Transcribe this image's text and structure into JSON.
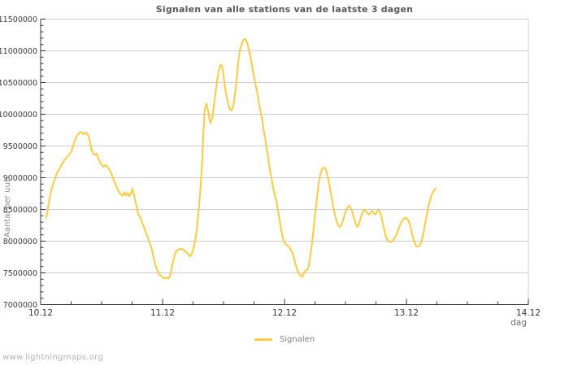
{
  "watermark": "www.lightningmaps.org",
  "legend": {
    "label": "Signalen",
    "color": "#FBCB43",
    "position": "bottom center"
  },
  "colors": {
    "background": "#ffffff",
    "line": "#FBCB43",
    "grid": "#cccccc",
    "axis": "#333333",
    "tick_label": "#3a3a3a",
    "title_text": "#595959",
    "muted_text": "#8a8a8a"
  },
  "chart_data": {
    "type": "line",
    "title": "Signalen van alle stations van de laatste 3 dagen",
    "xlabel": "dag",
    "ylabel": "Aantal per uur",
    "grid": "horizontal major gridlines only, boxed top and right border",
    "legend_position": "bottom center",
    "x_tick_labels": [
      "10.12",
      "11.12",
      "12.12",
      "13.12",
      "14.12"
    ],
    "x_tick_positions_days": [
      0,
      1,
      2,
      3,
      4
    ],
    "x_minor_tick_interval_days": 0.25,
    "xlim_days": [
      0,
      4
    ],
    "y_tick_labels": [
      "7000000",
      "7500000",
      "8000000",
      "8500000",
      "9000000",
      "9500000",
      "10000000",
      "10500000",
      "11000000",
      "11500000"
    ],
    "y_tick_values": [
      7000000,
      7500000,
      8000000,
      8500000,
      9000000,
      9500000,
      10000000,
      10500000,
      11000000,
      11500000
    ],
    "y_minor_tick_interval": 100000,
    "ylim": [
      7000000,
      11500000
    ],
    "series": [
      {
        "name": "Signalen",
        "color": "#FBCB43",
        "x_unit": "days since 10.12",
        "y_unit": "signals per hour",
        "points": [
          [
            0.047,
            8370000
          ],
          [
            0.067,
            8600000
          ],
          [
            0.087,
            8800000
          ],
          [
            0.107,
            8930000
          ],
          [
            0.133,
            9070000
          ],
          [
            0.16,
            9160000
          ],
          [
            0.187,
            9260000
          ],
          [
            0.213,
            9320000
          ],
          [
            0.233,
            9360000
          ],
          [
            0.253,
            9420000
          ],
          [
            0.273,
            9550000
          ],
          [
            0.293,
            9640000
          ],
          [
            0.313,
            9700000
          ],
          [
            0.333,
            9720000
          ],
          [
            0.353,
            9690000
          ],
          [
            0.373,
            9710000
          ],
          [
            0.393,
            9660000
          ],
          [
            0.407,
            9550000
          ],
          [
            0.42,
            9420000
          ],
          [
            0.44,
            9360000
          ],
          [
            0.46,
            9380000
          ],
          [
            0.473,
            9300000
          ],
          [
            0.493,
            9220000
          ],
          [
            0.513,
            9170000
          ],
          [
            0.533,
            9200000
          ],
          [
            0.553,
            9160000
          ],
          [
            0.573,
            9100000
          ],
          [
            0.593,
            9000000
          ],
          [
            0.613,
            8900000
          ],
          [
            0.633,
            8810000
          ],
          [
            0.653,
            8750000
          ],
          [
            0.673,
            8710000
          ],
          [
            0.687,
            8770000
          ],
          [
            0.7,
            8720000
          ],
          [
            0.713,
            8760000
          ],
          [
            0.727,
            8710000
          ],
          [
            0.74,
            8750000
          ],
          [
            0.753,
            8830000
          ],
          [
            0.767,
            8720000
          ],
          [
            0.78,
            8600000
          ],
          [
            0.8,
            8430000
          ],
          [
            0.82,
            8360000
          ],
          [
            0.84,
            8260000
          ],
          [
            0.86,
            8150000
          ],
          [
            0.88,
            8050000
          ],
          [
            0.893,
            7990000
          ],
          [
            0.913,
            7860000
          ],
          [
            0.933,
            7680000
          ],
          [
            0.953,
            7560000
          ],
          [
            0.973,
            7480000
          ],
          [
            0.993,
            7440000
          ],
          [
            1.013,
            7410000
          ],
          [
            1.033,
            7430000
          ],
          [
            1.047,
            7410000
          ],
          [
            1.06,
            7450000
          ],
          [
            1.073,
            7550000
          ],
          [
            1.087,
            7680000
          ],
          [
            1.1,
            7780000
          ],
          [
            1.113,
            7850000
          ],
          [
            1.133,
            7870000
          ],
          [
            1.153,
            7880000
          ],
          [
            1.173,
            7860000
          ],
          [
            1.193,
            7830000
          ],
          [
            1.213,
            7790000
          ],
          [
            1.227,
            7760000
          ],
          [
            1.24,
            7800000
          ],
          [
            1.253,
            7880000
          ],
          [
            1.267,
            8000000
          ],
          [
            1.28,
            8180000
          ],
          [
            1.293,
            8420000
          ],
          [
            1.307,
            8720000
          ],
          [
            1.32,
            9100000
          ],
          [
            1.333,
            9600000
          ],
          [
            1.34,
            9900000
          ],
          [
            1.347,
            10080000
          ],
          [
            1.36,
            10170000
          ],
          [
            1.373,
            10060000
          ],
          [
            1.387,
            9900000
          ],
          [
            1.393,
            9860000
          ],
          [
            1.407,
            9950000
          ],
          [
            1.42,
            10120000
          ],
          [
            1.433,
            10320000
          ],
          [
            1.447,
            10520000
          ],
          [
            1.46,
            10680000
          ],
          [
            1.473,
            10780000
          ],
          [
            1.487,
            10770000
          ],
          [
            1.5,
            10620000
          ],
          [
            1.513,
            10420000
          ],
          [
            1.527,
            10260000
          ],
          [
            1.54,
            10150000
          ],
          [
            1.553,
            10080000
          ],
          [
            1.567,
            10060000
          ],
          [
            1.58,
            10120000
          ],
          [
            1.593,
            10300000
          ],
          [
            1.607,
            10550000
          ],
          [
            1.62,
            10800000
          ],
          [
            1.633,
            11000000
          ],
          [
            1.647,
            11100000
          ],
          [
            1.66,
            11160000
          ],
          [
            1.673,
            11190000
          ],
          [
            1.687,
            11160000
          ],
          [
            1.7,
            11080000
          ],
          [
            1.713,
            10970000
          ],
          [
            1.727,
            10840000
          ],
          [
            1.74,
            10700000
          ],
          [
            1.753,
            10560000
          ],
          [
            1.767,
            10430000
          ],
          [
            1.78,
            10300000
          ],
          [
            1.793,
            10150000
          ],
          [
            1.807,
            10010000
          ],
          [
            1.82,
            9870000
          ],
          [
            1.833,
            9710000
          ],
          [
            1.847,
            9550000
          ],
          [
            1.86,
            9400000
          ],
          [
            1.873,
            9220000
          ],
          [
            1.887,
            9060000
          ],
          [
            1.9,
            8920000
          ],
          [
            1.913,
            8780000
          ],
          [
            1.933,
            8650000
          ],
          [
            1.953,
            8420000
          ],
          [
            1.973,
            8180000
          ],
          [
            1.987,
            8050000
          ],
          [
            2.0,
            7970000
          ],
          [
            2.02,
            7940000
          ],
          [
            2.04,
            7900000
          ],
          [
            2.053,
            7860000
          ],
          [
            2.067,
            7800000
          ],
          [
            2.08,
            7720000
          ],
          [
            2.093,
            7620000
          ],
          [
            2.107,
            7530000
          ],
          [
            2.12,
            7480000
          ],
          [
            2.133,
            7460000
          ],
          [
            2.147,
            7440000
          ],
          [
            2.16,
            7500000
          ],
          [
            2.173,
            7540000
          ],
          [
            2.187,
            7550000
          ],
          [
            2.2,
            7620000
          ],
          [
            2.213,
            7780000
          ],
          [
            2.227,
            7980000
          ],
          [
            2.24,
            8220000
          ],
          [
            2.253,
            8470000
          ],
          [
            2.267,
            8700000
          ],
          [
            2.28,
            8900000
          ],
          [
            2.293,
            9050000
          ],
          [
            2.307,
            9130000
          ],
          [
            2.32,
            9160000
          ],
          [
            2.333,
            9150000
          ],
          [
            2.347,
            9080000
          ],
          [
            2.36,
            8970000
          ],
          [
            2.373,
            8830000
          ],
          [
            2.387,
            8680000
          ],
          [
            2.4,
            8540000
          ],
          [
            2.413,
            8420000
          ],
          [
            2.427,
            8320000
          ],
          [
            2.44,
            8250000
          ],
          [
            2.453,
            8220000
          ],
          [
            2.467,
            8260000
          ],
          [
            2.48,
            8330000
          ],
          [
            2.493,
            8420000
          ],
          [
            2.507,
            8490000
          ],
          [
            2.52,
            8540000
          ],
          [
            2.533,
            8560000
          ],
          [
            2.547,
            8510000
          ],
          [
            2.56,
            8440000
          ],
          [
            2.573,
            8340000
          ],
          [
            2.587,
            8260000
          ],
          [
            2.6,
            8220000
          ],
          [
            2.613,
            8290000
          ],
          [
            2.627,
            8380000
          ],
          [
            2.64,
            8450000
          ],
          [
            2.653,
            8500000
          ],
          [
            2.667,
            8470000
          ],
          [
            2.68,
            8440000
          ],
          [
            2.693,
            8420000
          ],
          [
            2.707,
            8450000
          ],
          [
            2.72,
            8480000
          ],
          [
            2.733,
            8440000
          ],
          [
            2.747,
            8420000
          ],
          [
            2.76,
            8470000
          ],
          [
            2.773,
            8490000
          ],
          [
            2.787,
            8440000
          ],
          [
            2.8,
            8340000
          ],
          [
            2.813,
            8220000
          ],
          [
            2.827,
            8100000
          ],
          [
            2.84,
            8030000
          ],
          [
            2.853,
            8000000
          ],
          [
            2.873,
            7990000
          ],
          [
            2.893,
            8020000
          ],
          [
            2.913,
            8080000
          ],
          [
            2.933,
            8180000
          ],
          [
            2.953,
            8280000
          ],
          [
            2.973,
            8340000
          ],
          [
            2.987,
            8370000
          ],
          [
            3.0,
            8360000
          ],
          [
            3.013,
            8340000
          ],
          [
            3.027,
            8270000
          ],
          [
            3.04,
            8170000
          ],
          [
            3.053,
            8060000
          ],
          [
            3.067,
            7970000
          ],
          [
            3.08,
            7920000
          ],
          [
            3.093,
            7910000
          ],
          [
            3.107,
            7930000
          ],
          [
            3.12,
            7970000
          ],
          [
            3.133,
            8060000
          ],
          [
            3.147,
            8200000
          ],
          [
            3.16,
            8340000
          ],
          [
            3.173,
            8480000
          ],
          [
            3.187,
            8600000
          ],
          [
            3.2,
            8690000
          ],
          [
            3.213,
            8760000
          ],
          [
            3.227,
            8800000
          ],
          [
            3.24,
            8830000
          ]
        ]
      }
    ]
  }
}
